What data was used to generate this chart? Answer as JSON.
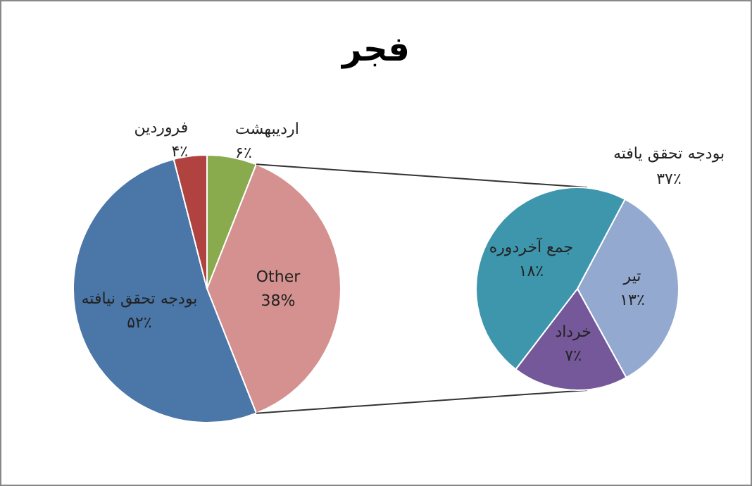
{
  "chart_data": [
    {
      "type": "pie",
      "title": "فجر",
      "categories": [
        "اردیبهشت",
        "Other",
        "بودجه تحقق نیافته",
        "فروردین"
      ],
      "values": [
        6,
        38,
        52,
        4
      ],
      "colors": [
        "#8aaa4e",
        "#d4918f",
        "#4a76a8",
        "#b0423f"
      ],
      "value_labels": [
        "۶٪",
        "38%",
        "۵۲٪",
        "۴٪"
      ],
      "legend": false
    },
    {
      "type": "pie",
      "categories": [
        "تیر",
        "خرداد",
        "جمع آخردوره"
      ],
      "values": [
        13,
        7,
        18
      ],
      "colors": [
        "#94a9d0",
        "#74589a",
        "#3e96ac"
      ],
      "value_labels": [
        "۱۳٪",
        "۷٪",
        "۱۸٪"
      ],
      "annotations": [
        "بودجه تحقق یافته\n۳۷٪"
      ],
      "legend": false
    }
  ]
}
